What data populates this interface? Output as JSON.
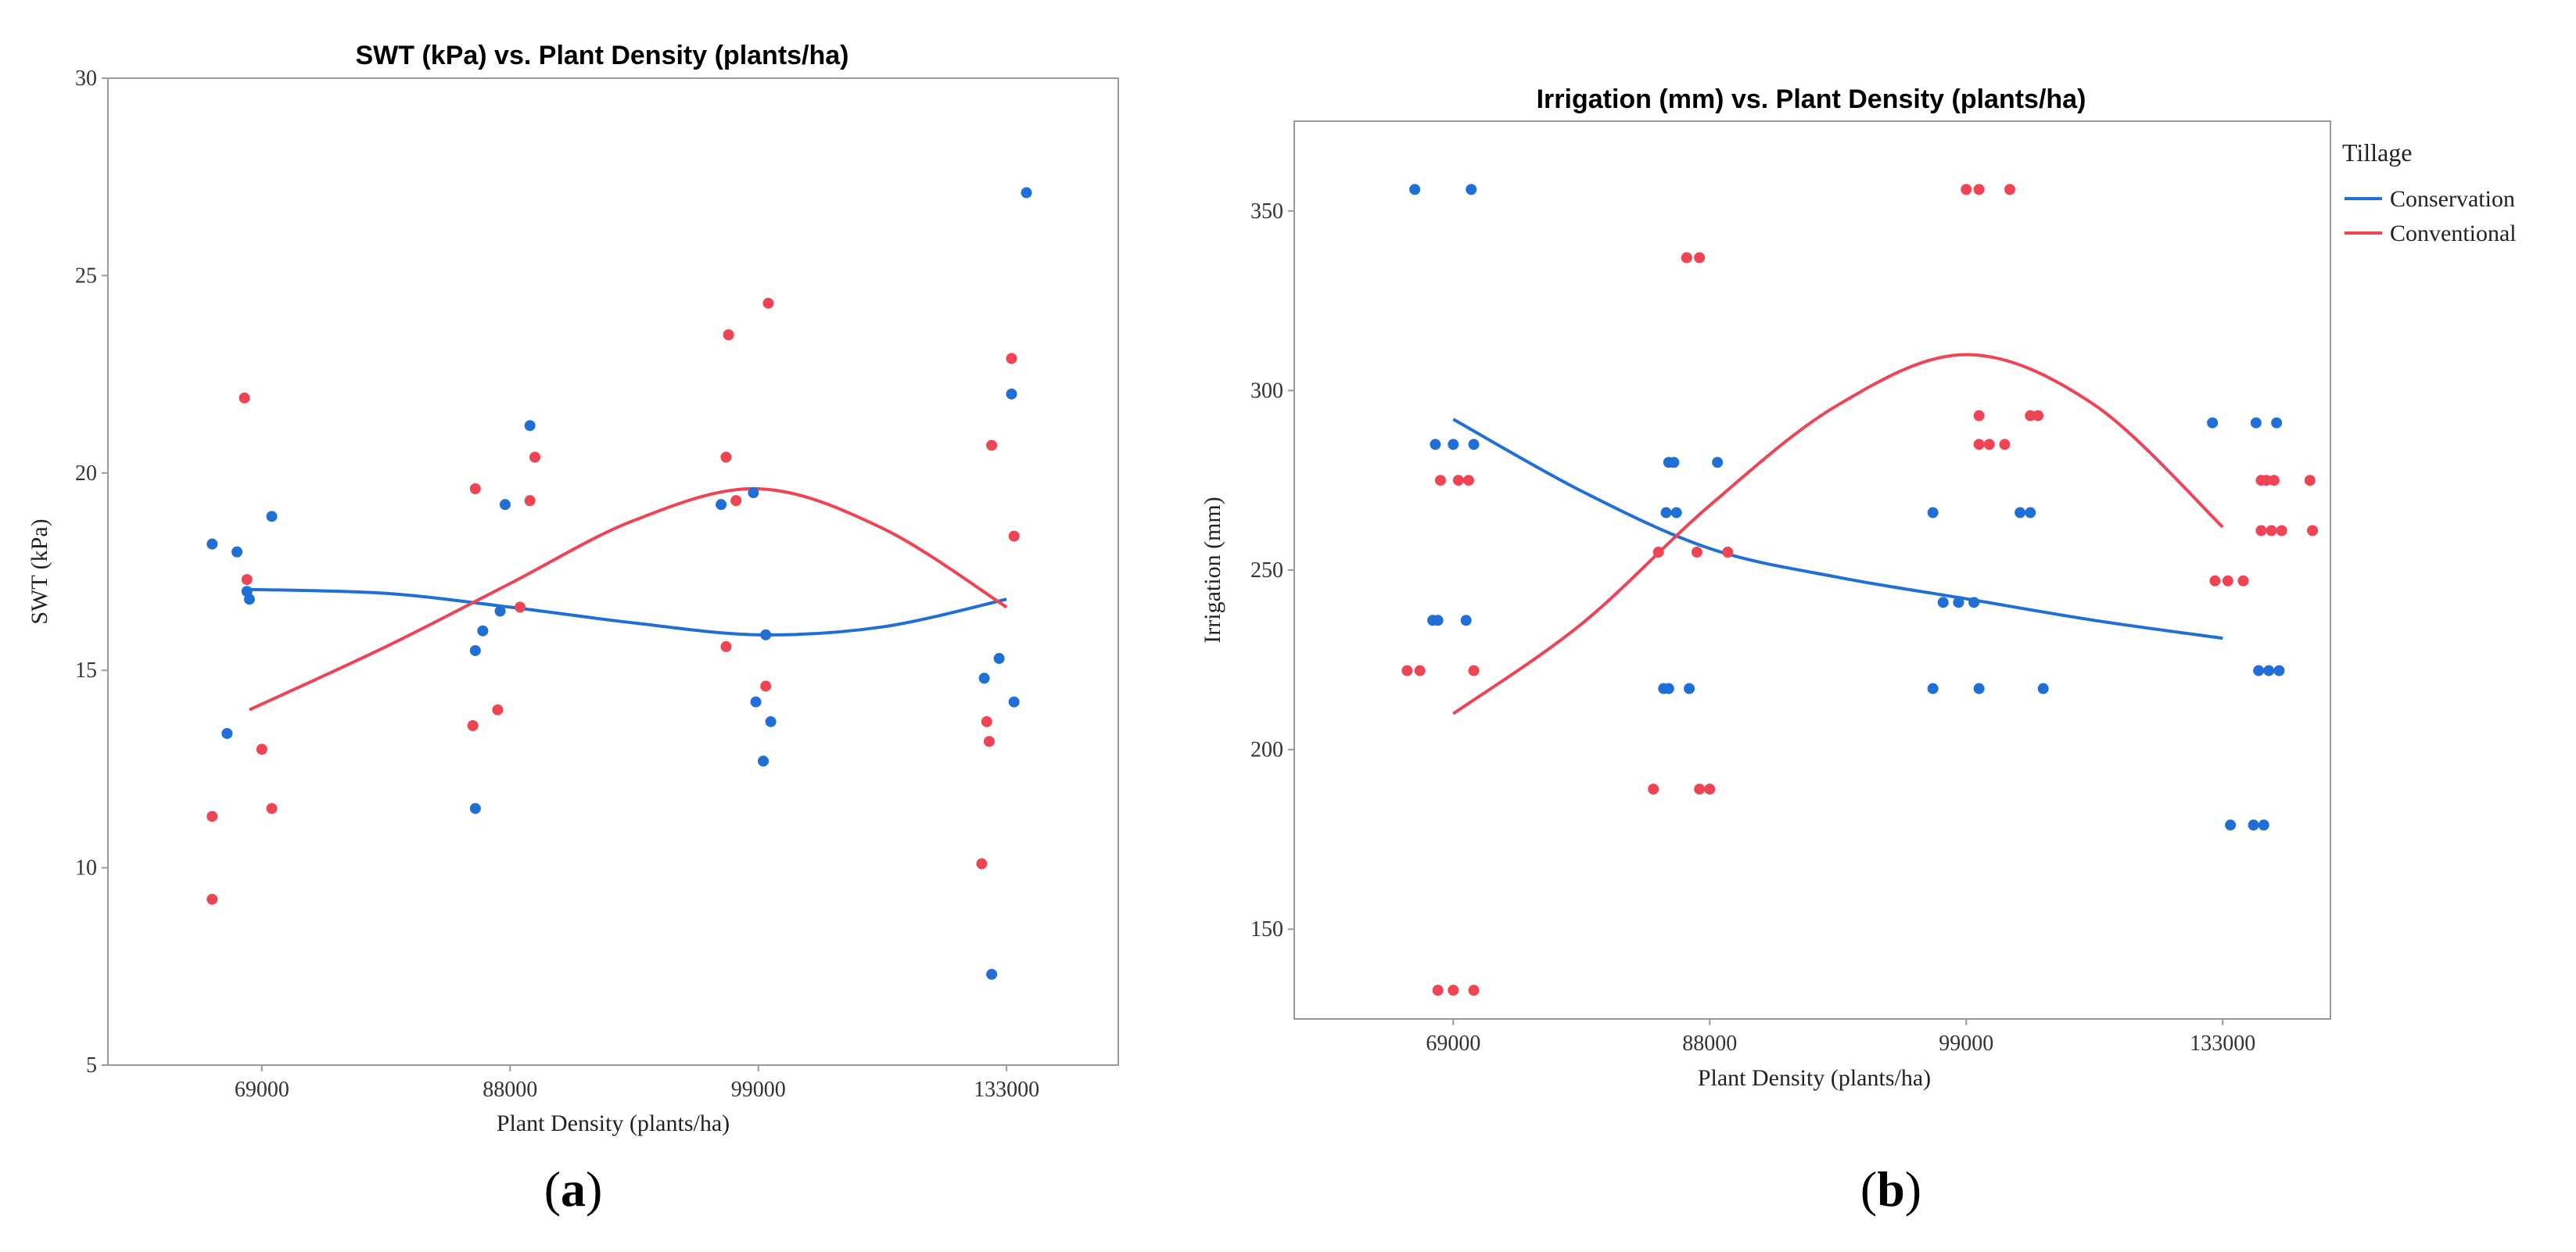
{
  "colors": {
    "conservation": "#1f6fd6",
    "conventional": "#ee4454"
  },
  "legend": {
    "title": "Tillage",
    "items": [
      "Conservation",
      "Conventional"
    ]
  },
  "captions": [
    {
      "open": "(",
      "letter": "a",
      "close": ")"
    },
    {
      "open": "(",
      "letter": "b",
      "close": ")"
    }
  ],
  "chart_data": [
    {
      "type": "scatter",
      "title": "SWT (kPa) vs. Plant Density (plants/ha)",
      "xlabel": "Plant Density (plants/ha)",
      "ylabel": "SWT (kPa)",
      "categories": [
        "69000",
        "88000",
        "99000",
        "133000"
      ],
      "xlim": [
        -0.62,
        3.45
      ],
      "ylim": [
        5,
        30
      ],
      "yticks": [
        5,
        10,
        15,
        20,
        25,
        30
      ],
      "series": [
        {
          "name": "Conservation",
          "points": [
            [
              -0.2,
              18.2
            ],
            [
              -0.14,
              13.4
            ],
            [
              -0.1,
              18.0
            ],
            [
              -0.06,
              17.0
            ],
            [
              -0.05,
              16.8
            ],
            [
              0.04,
              18.9
            ],
            [
              0.86,
              15.5
            ],
            [
              0.86,
              11.5
            ],
            [
              0.89,
              16.0
            ],
            [
              0.96,
              16.5
            ],
            [
              0.98,
              19.2
            ],
            [
              1.08,
              21.2
            ],
            [
              1.85,
              19.2
            ],
            [
              1.98,
              19.5
            ],
            [
              1.99,
              14.2
            ],
            [
              2.02,
              12.7
            ],
            [
              2.03,
              15.9
            ],
            [
              2.05,
              13.7
            ],
            [
              2.91,
              14.8
            ],
            [
              2.94,
              7.3
            ],
            [
              2.97,
              15.3
            ],
            [
              3.02,
              22.0
            ],
            [
              3.03,
              14.2
            ],
            [
              3.08,
              27.1
            ]
          ],
          "fit": [
            [
              -0.05,
              17.05
            ],
            [
              0.5,
              16.95
            ],
            [
              1.0,
              16.6
            ],
            [
              1.5,
              16.2
            ],
            [
              2.0,
              15.9
            ],
            [
              2.5,
              16.1
            ],
            [
              3.0,
              16.8
            ]
          ]
        },
        {
          "name": "Conventional",
          "points": [
            [
              -0.2,
              11.3
            ],
            [
              -0.2,
              9.2
            ],
            [
              -0.07,
              21.9
            ],
            [
              -0.06,
              17.3
            ],
            [
              0.0,
              13.0
            ],
            [
              0.04,
              11.5
            ],
            [
              0.85,
              13.6
            ],
            [
              0.86,
              19.6
            ],
            [
              0.95,
              14.0
            ],
            [
              1.04,
              16.6
            ],
            [
              1.08,
              19.3
            ],
            [
              1.1,
              20.4
            ],
            [
              1.87,
              20.4
            ],
            [
              1.87,
              15.6
            ],
            [
              1.88,
              23.5
            ],
            [
              1.91,
              19.3
            ],
            [
              2.03,
              14.6
            ],
            [
              2.04,
              24.3
            ],
            [
              2.9,
              10.1
            ],
            [
              2.92,
              13.7
            ],
            [
              2.93,
              13.2
            ],
            [
              2.94,
              20.7
            ],
            [
              3.02,
              22.9
            ],
            [
              3.03,
              18.4
            ]
          ],
          "fit": [
            [
              -0.05,
              14.0
            ],
            [
              0.5,
              15.6
            ],
            [
              1.0,
              17.2
            ],
            [
              1.5,
              18.8
            ],
            [
              2.0,
              19.6
            ],
            [
              2.5,
              18.6
            ],
            [
              3.0,
              16.6
            ]
          ]
        }
      ]
    },
    {
      "type": "scatter",
      "title": "Irrigation (mm) vs. Plant Density (plants/ha)",
      "xlabel": "Plant Density (plants/ha)",
      "ylabel": "Irrigation (mm)",
      "categories": [
        "69000",
        "88000",
        "99000",
        "133000"
      ],
      "xlim": [
        -0.62,
        3.42
      ],
      "ylim": [
        125,
        375
      ],
      "yticks": [
        150,
        200,
        250,
        300,
        350
      ],
      "series": [
        {
          "name": "Conservation",
          "points": [
            [
              -0.15,
              356
            ],
            [
              0.07,
              356
            ],
            [
              -0.07,
              285
            ],
            [
              0.0,
              285
            ],
            [
              0.08,
              285
            ],
            [
              -0.08,
              236
            ],
            [
              -0.06,
              236
            ],
            [
              0.05,
              236
            ],
            [
              0.84,
              280
            ],
            [
              0.86,
              280
            ],
            [
              0.83,
              266
            ],
            [
              0.87,
              266
            ],
            [
              1.03,
              280
            ],
            [
              0.82,
              217
            ],
            [
              0.84,
              217
            ],
            [
              0.92,
              217
            ],
            [
              1.87,
              266
            ],
            [
              1.91,
              241
            ],
            [
              1.97,
              241
            ],
            [
              2.03,
              241
            ],
            [
              1.87,
              217
            ],
            [
              2.05,
              217
            ],
            [
              2.21,
              266
            ],
            [
              2.25,
              266
            ],
            [
              2.3,
              217
            ],
            [
              2.96,
              291
            ],
            [
              3.03,
              179
            ],
            [
              3.13,
              291
            ],
            [
              3.21,
              291
            ],
            [
              3.14,
              222
            ],
            [
              3.18,
              222
            ],
            [
              3.22,
              222
            ],
            [
              3.12,
              179
            ],
            [
              3.16,
              179
            ]
          ],
          "fit": [
            [
              0.0,
              292
            ],
            [
              0.5,
              272
            ],
            [
              1.0,
              256
            ],
            [
              1.5,
              248
            ],
            [
              2.0,
              242
            ],
            [
              2.5,
              236
            ],
            [
              3.0,
              231
            ]
          ]
        },
        {
          "name": "Conventional",
          "points": [
            [
              -0.18,
              222
            ],
            [
              -0.13,
              222
            ],
            [
              0.08,
              222
            ],
            [
              -0.05,
              275
            ],
            [
              0.02,
              275
            ],
            [
              0.06,
              275
            ],
            [
              -0.06,
              133
            ],
            [
              0.0,
              133
            ],
            [
              0.08,
              133
            ],
            [
              0.8,
              255
            ],
            [
              0.95,
              255
            ],
            [
              1.07,
              255
            ],
            [
              0.78,
              189
            ],
            [
              0.96,
              189
            ],
            [
              1.0,
              189
            ],
            [
              0.91,
              337
            ],
            [
              0.96,
              337
            ],
            [
              2.0,
              356
            ],
            [
              2.05,
              356
            ],
            [
              2.17,
              356
            ],
            [
              2.05,
              293
            ],
            [
              2.25,
              293
            ],
            [
              2.28,
              293
            ],
            [
              2.05,
              285
            ],
            [
              2.09,
              285
            ],
            [
              2.15,
              285
            ],
            [
              2.97,
              247
            ],
            [
              3.02,
              247
            ],
            [
              3.08,
              247
            ],
            [
              3.15,
              275
            ],
            [
              3.17,
              275
            ],
            [
              3.2,
              275
            ],
            [
              3.15,
              261
            ],
            [
              3.19,
              261
            ],
            [
              3.23,
              261
            ],
            [
              3.35,
              261
            ],
            [
              3.34,
              275
            ]
          ],
          "fit": [
            [
              0.0,
              210
            ],
            [
              0.5,
              235
            ],
            [
              1.0,
              268
            ],
            [
              1.5,
              296
            ],
            [
              2.0,
              310
            ],
            [
              2.5,
              296
            ],
            [
              3.0,
              262
            ]
          ]
        }
      ]
    }
  ]
}
